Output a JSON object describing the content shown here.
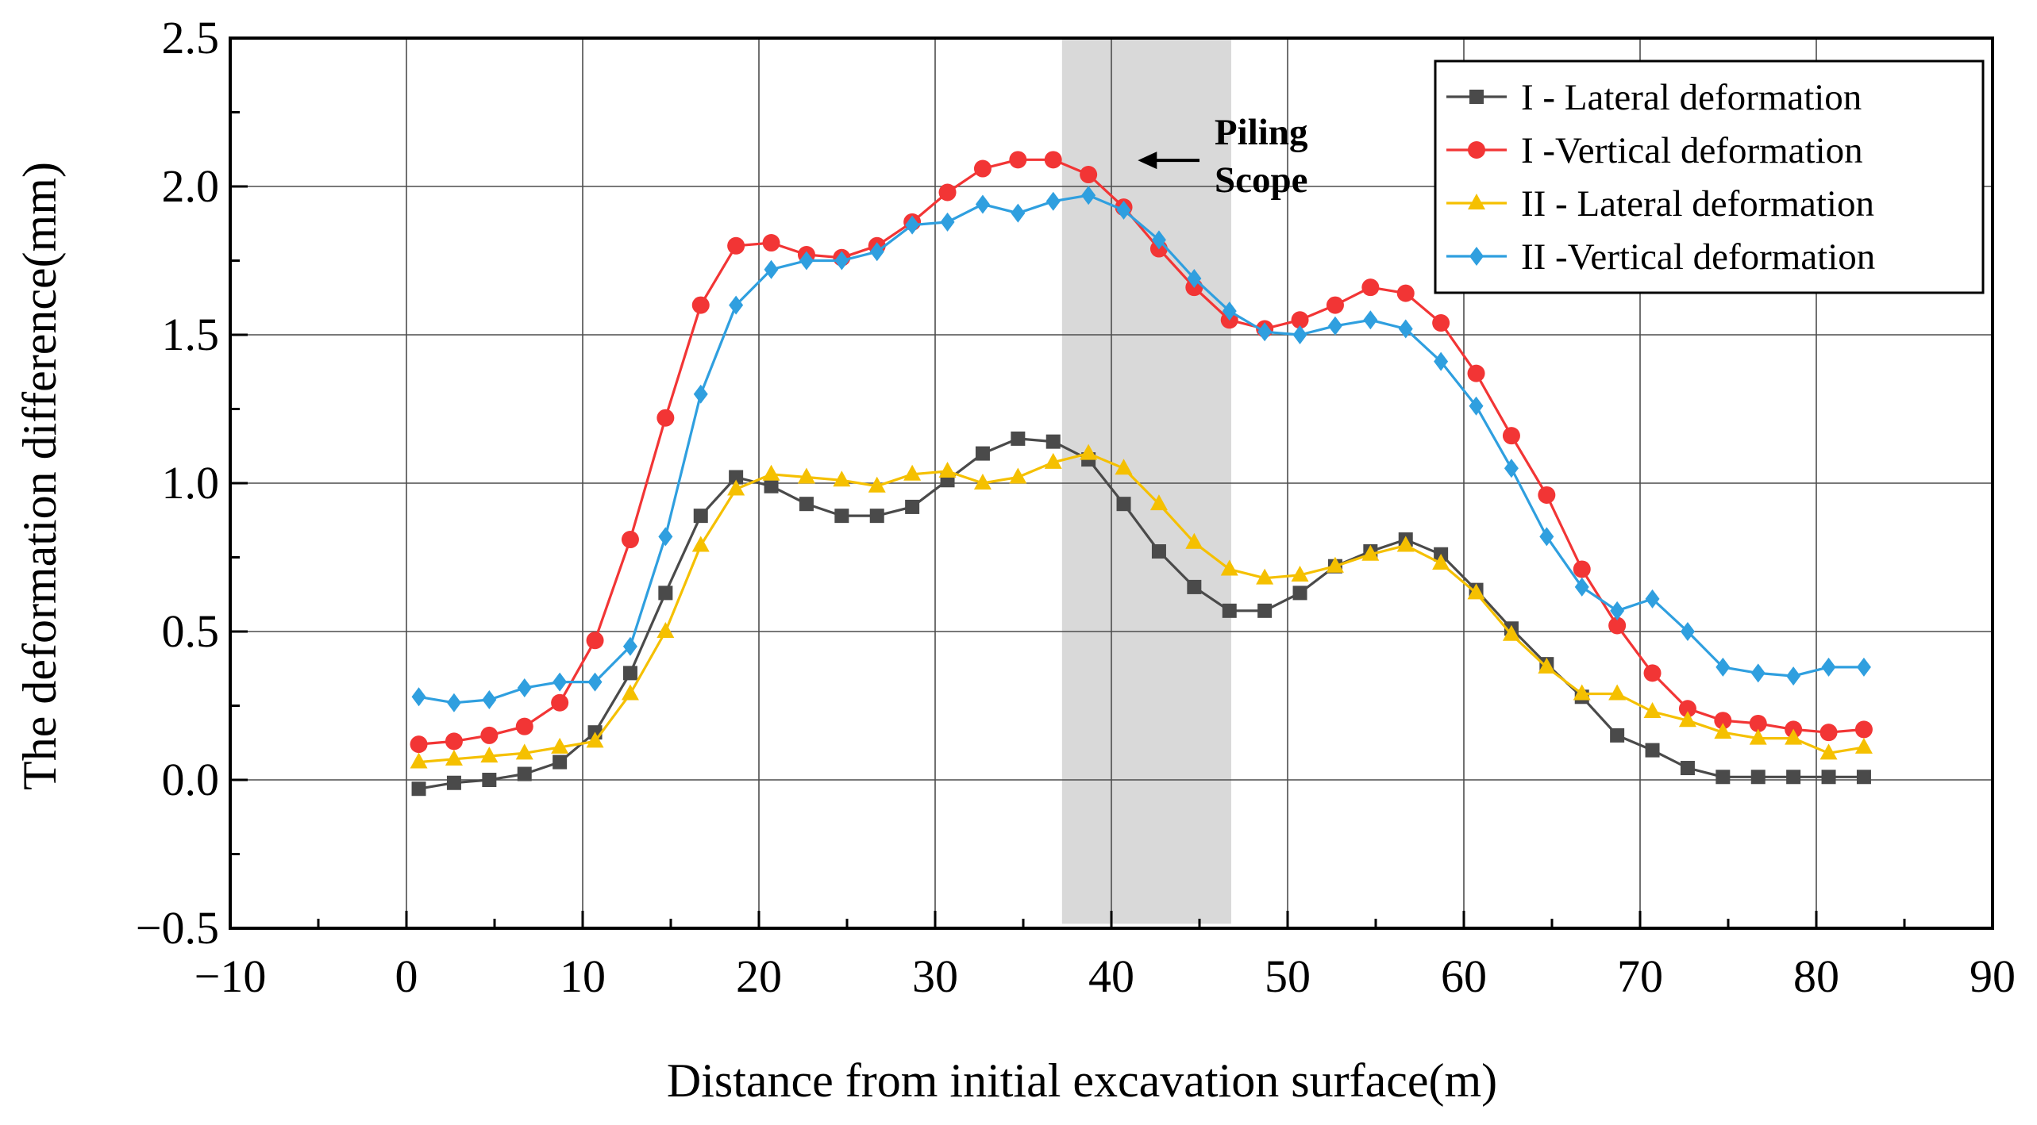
{
  "chart_data": {
    "type": "line",
    "xlabel": "Distance from initial excavation surface(m)",
    "ylabel": "The deformation difference(mm)",
    "xlim": [
      -10,
      90
    ],
    "ylim": [
      -0.5,
      2.5
    ],
    "xticks": [
      -10,
      0,
      10,
      20,
      30,
      40,
      50,
      60,
      70,
      80,
      90
    ],
    "xtick_labels": [
      "−10",
      "0",
      "10",
      "20",
      "30",
      "40",
      "50",
      "60",
      "70",
      "80",
      "90"
    ],
    "yticks": [
      -0.5,
      0.0,
      0.5,
      1.0,
      1.5,
      2.0,
      2.5
    ],
    "ytick_labels": [
      "−0.5",
      "0.0",
      "0.5",
      "1.0",
      "1.5",
      "2.0",
      "2.5"
    ],
    "grid": true,
    "legend_position": "top-right",
    "shaded_region": {
      "x_start": 37.2,
      "x_end": 46.8,
      "color": "#d9d9d9"
    },
    "annotation": {
      "lines": [
        "Piling",
        "Scope"
      ],
      "arrow_from_x": 45.0,
      "arrow_to_x": 41.5,
      "y": 2.12
    },
    "x": [
      0.7,
      2.7,
      4.7,
      6.7,
      8.7,
      10.7,
      12.7,
      14.7,
      16.7,
      18.7,
      20.7,
      22.7,
      24.7,
      26.7,
      28.7,
      30.7,
      32.7,
      34.7,
      36.7,
      38.7,
      40.7,
      42.7,
      44.7,
      46.7,
      48.7,
      50.7,
      52.7,
      54.7,
      56.7,
      58.7,
      60.7,
      62.7,
      64.7,
      66.7,
      68.7,
      70.7,
      72.7,
      74.7,
      76.7,
      78.7,
      80.7,
      82.7
    ],
    "series": [
      {
        "name": "I - Lateral deformation",
        "color": "#4a4a4a",
        "marker": "square",
        "values": [
          -0.03,
          -0.01,
          0.0,
          0.02,
          0.06,
          0.16,
          0.36,
          0.63,
          0.89,
          1.02,
          0.99,
          0.93,
          0.89,
          0.89,
          0.92,
          1.01,
          1.1,
          1.15,
          1.14,
          1.08,
          0.93,
          0.77,
          0.65,
          0.57,
          0.57,
          0.63,
          0.72,
          0.77,
          0.81,
          0.76,
          0.64,
          0.51,
          0.39,
          0.28,
          0.15,
          0.1,
          0.04,
          0.01,
          0.01,
          0.01,
          0.01,
          0.01
        ]
      },
      {
        "name": "I -Vertical deformation",
        "color": "#f23535",
        "marker": "circle",
        "values": [
          0.12,
          0.13,
          0.15,
          0.18,
          0.26,
          0.47,
          0.81,
          1.22,
          1.6,
          1.8,
          1.81,
          1.77,
          1.76,
          1.8,
          1.88,
          1.98,
          2.06,
          2.09,
          2.09,
          2.04,
          1.93,
          1.79,
          1.66,
          1.55,
          1.52,
          1.55,
          1.6,
          1.66,
          1.64,
          1.54,
          1.37,
          1.16,
          0.96,
          0.71,
          0.52,
          0.36,
          0.24,
          0.2,
          0.19,
          0.17,
          0.16,
          0.17
        ]
      },
      {
        "name": "II - Lateral deformation",
        "color": "#f5c000",
        "marker": "triangle",
        "values": [
          0.06,
          0.07,
          0.08,
          0.09,
          0.11,
          0.13,
          0.29,
          0.5,
          0.79,
          0.98,
          1.03,
          1.02,
          1.01,
          0.99,
          1.03,
          1.04,
          1.0,
          1.02,
          1.07,
          1.1,
          1.05,
          0.93,
          0.8,
          0.71,
          0.68,
          0.69,
          0.72,
          0.76,
          0.79,
          0.73,
          0.63,
          0.49,
          0.38,
          0.29,
          0.29,
          0.23,
          0.2,
          0.16,
          0.14,
          0.14,
          0.09,
          0.11
        ]
      },
      {
        "name": "II -Vertical deformation",
        "color": "#2f9fdf",
        "marker": "diamond",
        "values": [
          0.28,
          0.26,
          0.27,
          0.31,
          0.33,
          0.33,
          0.45,
          0.82,
          1.3,
          1.6,
          1.72,
          1.75,
          1.75,
          1.78,
          1.87,
          1.88,
          1.94,
          1.91,
          1.95,
          1.97,
          1.92,
          1.82,
          1.69,
          1.58,
          1.51,
          1.5,
          1.53,
          1.55,
          1.52,
          1.41,
          1.26,
          1.05,
          0.82,
          0.65,
          0.57,
          0.61,
          0.5,
          0.38,
          0.36,
          0.35,
          0.38,
          0.38
        ]
      }
    ]
  }
}
